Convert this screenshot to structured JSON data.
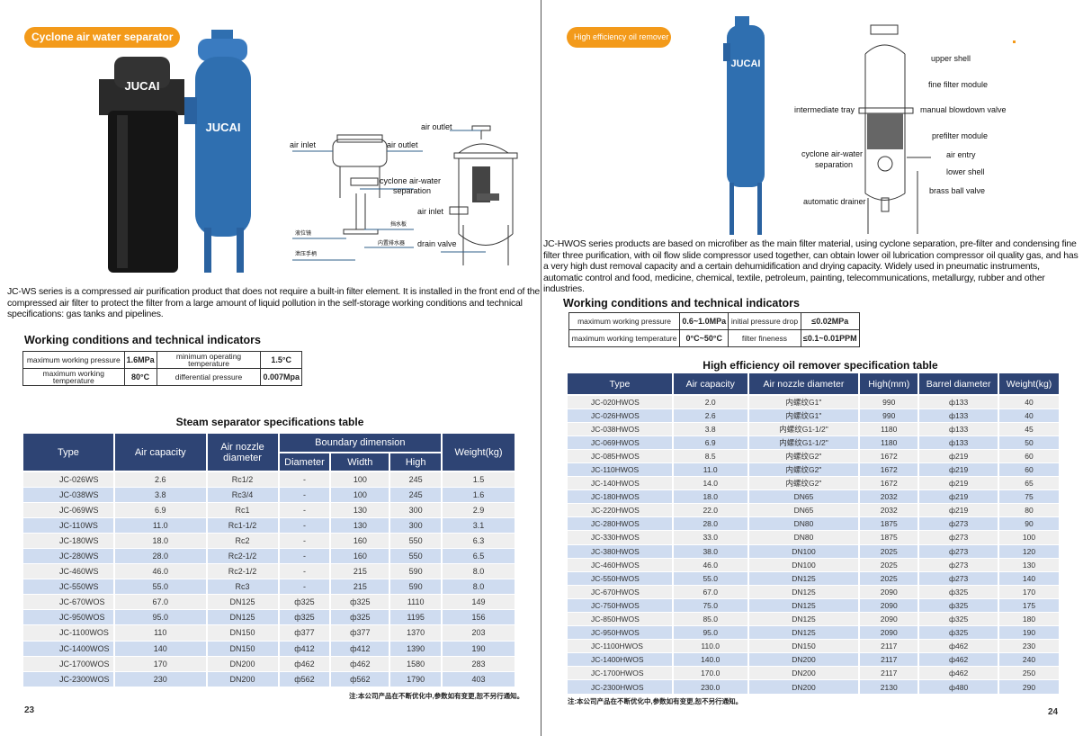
{
  "left": {
    "badge": "Cyclone air water separator",
    "brand_labels": [
      "JUCAI",
      "JUCAI"
    ],
    "diagram_labels": {
      "air_inlet": "air inlet",
      "air_outlet": "air outlet",
      "cyclone": "cyclone air-water",
      "cyclone2": "separation",
      "cn1": "挡水板",
      "cn2": "液位镜",
      "cn3": "内置排水器",
      "cn4": "泄压手柄",
      "air_outlet2": "air outlet",
      "air_inlet2": "air inlet",
      "drain_valve": "drain valve"
    },
    "paragraph": "JC-WS series is a compressed air purification product that does not require a built-in filter element. It is installed in the front end of the compressed air filter to protect the filter from a large amount of liquid pollution in the self-storage working conditions and technical specifications: gas tanks and pipelines.",
    "wc_title": "Working conditions and technical indicators",
    "wc_rows": [
      [
        "maximum working pressure",
        "1.6MPa",
        "minimum operating temperature",
        "1.5°C"
      ],
      [
        "maximum working temperature",
        "80°C",
        "differential pressure",
        "0.007Mpa"
      ]
    ],
    "table_title": "Steam separator specifications table",
    "headers": {
      "type": "Type",
      "air_capacity": "Air capacity",
      "nozzle": "Air nozzle diameter",
      "boundary": "Boundary dimension",
      "diameter": "Diameter",
      "width": "Width",
      "high": "High",
      "weight": "Weight(kg)"
    },
    "rows": [
      [
        "JC-026WS",
        "2.6",
        "Rc1/2",
        "-",
        "100",
        "245",
        "1.5"
      ],
      [
        "JC-038WS",
        "3.8",
        "Rc3/4",
        "-",
        "100",
        "245",
        "1.6"
      ],
      [
        "JC-069WS",
        "6.9",
        "Rc1",
        "-",
        "130",
        "300",
        "2.9"
      ],
      [
        "JC-110WS",
        "11.0",
        "Rc1-1/2",
        "-",
        "130",
        "300",
        "3.1"
      ],
      [
        "JC-180WS",
        "18.0",
        "Rc2",
        "-",
        "160",
        "550",
        "6.3"
      ],
      [
        "JC-280WS",
        "28.0",
        "Rc2-1/2",
        "-",
        "160",
        "550",
        "6.5"
      ],
      [
        "JC-460WS",
        "46.0",
        "Rc2-1/2",
        "-",
        "215",
        "590",
        "8.0"
      ],
      [
        "JC-550WS",
        "55.0",
        "Rc3",
        "-",
        "215",
        "590",
        "8.0"
      ],
      [
        "JC-670WOS",
        "67.0",
        "DN125",
        "ф325",
        "ф325",
        "1110",
        "149"
      ],
      [
        "JC-950WOS",
        "95.0",
        "DN125",
        "ф325",
        "ф325",
        "1195",
        "156"
      ],
      [
        "JC-1100WOS",
        "110",
        "DN150",
        "ф377",
        "ф377",
        "1370",
        "203"
      ],
      [
        "JC-1400WOS",
        "140",
        "DN150",
        "ф412",
        "ф412",
        "1390",
        "190"
      ],
      [
        "JC-1700WOS",
        "170",
        "DN200",
        "ф462",
        "ф462",
        "1580",
        "283"
      ],
      [
        "JC-2300WOS",
        "230",
        "DN200",
        "ф562",
        "ф562",
        "1790",
        "403"
      ]
    ],
    "note": "注:本公司产品在不断优化中,参数如有变更,恕不另行通知。",
    "page_number": "23"
  },
  "right": {
    "badge": "High efficiency oil remover",
    "brand_label": "JUCAI",
    "diagram_labels": {
      "upper_shell": "upper shell",
      "fine_filter": "fine filter module",
      "intermediate_tray": "intermediate tray",
      "manual_blowdown": "manual blowdown valve",
      "prefilter": "prefilter module",
      "cyclone": "cyclone air-water",
      "cyclone2": "separation",
      "air_entry": "air entry",
      "lower_shell": "lower shell",
      "brass_ball": "brass ball valve",
      "auto_drainer": "automatic drainer"
    },
    "paragraph": "JC-HWOS series products are based on microfiber as the main filter material, using cyclone separation, pre-filter and condensing fine filter three purification, with oil flow slide compressor used together, can obtain lower oil lubrication compressor oil quality gas, and has a very high dust removal capacity and a certain dehumidification and drying capacity. Widely used in pneumatic instruments, automatic control and food, medicine, chemical, textile, petroleum, painting, telecommunications, metallurgy, rubber and other industries.",
    "wc_title": "Working conditions and technical indicators",
    "wc_rows": [
      [
        "maximum working pressure",
        "0.6~1.0MPa",
        "initial pressure drop",
        "≤0.02MPa"
      ],
      [
        "maximum working temperature",
        "0°C~50°C",
        "filter fineness",
        "≤0.1~0.01PPM"
      ]
    ],
    "table_title": "High efficiency oil remover specification table",
    "headers": [
      "Type",
      "Air capacity",
      "Air nozzle diameter",
      "High(mm)",
      "Barrel diameter",
      "Weight(kg)"
    ],
    "rows": [
      [
        "JC-020HWOS",
        "2.0",
        "内螺纹G1\"",
        "990",
        "ф133",
        "40"
      ],
      [
        "JC-026HWOS",
        "2.6",
        "内螺纹G1\"",
        "990",
        "ф133",
        "40"
      ],
      [
        "JC-038HWOS",
        "3.8",
        "内螺纹G1-1/2\"",
        "1180",
        "ф133",
        "45"
      ],
      [
        "JC-069HWOS",
        "6.9",
        "内螺纹G1-1/2\"",
        "1180",
        "ф133",
        "50"
      ],
      [
        "JC-085HWOS",
        "8.5",
        "内螺纹G2\"",
        "1672",
        "ф219",
        "60"
      ],
      [
        "JC-110HWOS",
        "11.0",
        "内螺纹G2\"",
        "1672",
        "ф219",
        "60"
      ],
      [
        "JC-140HWOS",
        "14.0",
        "内螺纹G2\"",
        "1672",
        "ф219",
        "65"
      ],
      [
        "JC-180HWOS",
        "18.0",
        "DN65",
        "2032",
        "ф219",
        "75"
      ],
      [
        "JC-220HWOS",
        "22.0",
        "DN65",
        "2032",
        "ф219",
        "80"
      ],
      [
        "JC-280HWOS",
        "28.0",
        "DN80",
        "1875",
        "ф273",
        "90"
      ],
      [
        "JC-330HWOS",
        "33.0",
        "DN80",
        "1875",
        "ф273",
        "100"
      ],
      [
        "JC-380HWOS",
        "38.0",
        "DN100",
        "2025",
        "ф273",
        "120"
      ],
      [
        "JC-460HWOS",
        "46.0",
        "DN100",
        "2025",
        "ф273",
        "130"
      ],
      [
        "JC-550HWOS",
        "55.0",
        "DN125",
        "2025",
        "ф273",
        "140"
      ],
      [
        "JC-670HWOS",
        "67.0",
        "DN125",
        "2090",
        "ф325",
        "170"
      ],
      [
        "JC-750HWOS",
        "75.0",
        "DN125",
        "2090",
        "ф325",
        "175"
      ],
      [
        "JC-850HWOS",
        "85.0",
        "DN125",
        "2090",
        "ф325",
        "180"
      ],
      [
        "JC-950HWOS",
        "95.0",
        "DN125",
        "2090",
        "ф325",
        "190"
      ],
      [
        "JC-1100HWOS",
        "110.0",
        "DN150",
        "2117",
        "ф462",
        "230"
      ],
      [
        "JC-1400HWOS",
        "140.0",
        "DN200",
        "2117",
        "ф462",
        "240"
      ],
      [
        "JC-1700HWOS",
        "170.0",
        "DN200",
        "2117",
        "ф462",
        "250"
      ],
      [
        "JC-2300HWOS",
        "230.0",
        "DN200",
        "2130",
        "ф480",
        "290"
      ]
    ],
    "note": "注:本公司产品在不断优化中,参数如有变更,恕不另行通知。",
    "page_number": "24"
  },
  "colors": {
    "badge": "#f39a1a",
    "header": "#2e4474",
    "row_alt": "#cfdcf0",
    "row": "#efefef",
    "product_blue": "#2f6fb0"
  }
}
